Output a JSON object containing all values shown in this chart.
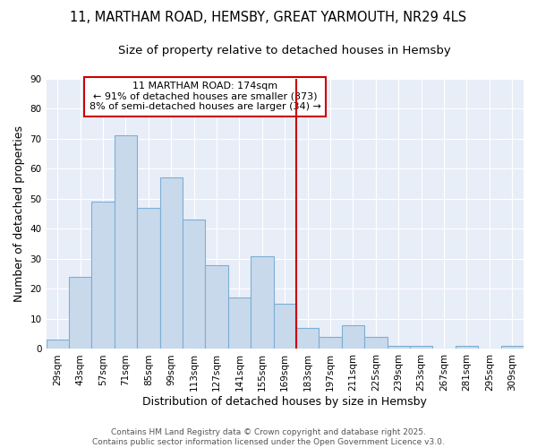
{
  "title_line1": "11, MARTHAM ROAD, HEMSBY, GREAT YARMOUTH, NR29 4LS",
  "title_line2": "Size of property relative to detached houses in Hemsby",
  "xlabel": "Distribution of detached houses by size in Hemsby",
  "ylabel": "Number of detached properties",
  "bar_color": "#c9d9ec",
  "bar_edge_color": "#7bafd4",
  "categories": [
    "29sqm",
    "43sqm",
    "57sqm",
    "71sqm",
    "85sqm",
    "99sqm",
    "113sqm",
    "127sqm",
    "141sqm",
    "155sqm",
    "169sqm",
    "183sqm",
    "197sqm",
    "211sqm",
    "225sqm",
    "239sqm",
    "253sqm",
    "267sqm",
    "281sqm",
    "295sqm",
    "309sqm"
  ],
  "values": [
    3,
    24,
    49,
    71,
    47,
    57,
    43,
    28,
    17,
    31,
    15,
    7,
    4,
    8,
    4,
    1,
    1,
    0,
    1,
    0,
    1
  ],
  "ylim": [
    0,
    90
  ],
  "yticks": [
    0,
    10,
    20,
    30,
    40,
    50,
    60,
    70,
    80,
    90
  ],
  "property_line_x": 10.5,
  "annotation_text": "11 MARTHAM ROAD: 174sqm\n← 91% of detached houses are smaller (373)\n8% of semi-detached houses are larger (34) →",
  "annotation_box_color": "#ffffff",
  "annotation_edge_color": "#cc0000",
  "vline_color": "#cc0000",
  "fig_background_color": "#ffffff",
  "ax_background_color": "#e8eef8",
  "grid_color": "#ffffff",
  "footer_text": "Contains HM Land Registry data © Crown copyright and database right 2025.\nContains public sector information licensed under the Open Government Licence v3.0.",
  "title_fontsize": 10.5,
  "subtitle_fontsize": 9.5,
  "tick_fontsize": 7.5,
  "label_fontsize": 9,
  "footer_fontsize": 6.5
}
